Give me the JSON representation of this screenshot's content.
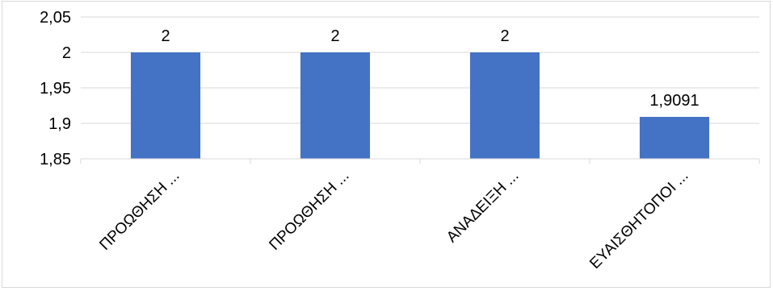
{
  "chart_data": {
    "type": "bar",
    "categories": [
      "ΠΡΟΩΘΗΣΗ ...",
      "ΠΡΟΩΘΗΣΗ ...",
      "ΑΝΑΔΕΙΞΗ ...",
      "ΕΥΑΙΣΘΗΤΟΠΟΙ ..."
    ],
    "values": [
      2,
      2,
      2,
      1.9091
    ],
    "value_labels": [
      "2",
      "2",
      "2",
      "1,9091"
    ],
    "ylim": [
      1.85,
      2.05
    ],
    "yticks": [
      1.85,
      1.9,
      1.95,
      2,
      2.05
    ],
    "ytick_labels": [
      "1,85",
      "1,9",
      "1,95",
      "2",
      "2,05"
    ],
    "title": "",
    "xlabel": "",
    "ylabel": "",
    "grid": true,
    "legend": "none",
    "bar_color": "#4472C4",
    "grid_color": "#d9d9d9",
    "text_color": "#000000"
  }
}
